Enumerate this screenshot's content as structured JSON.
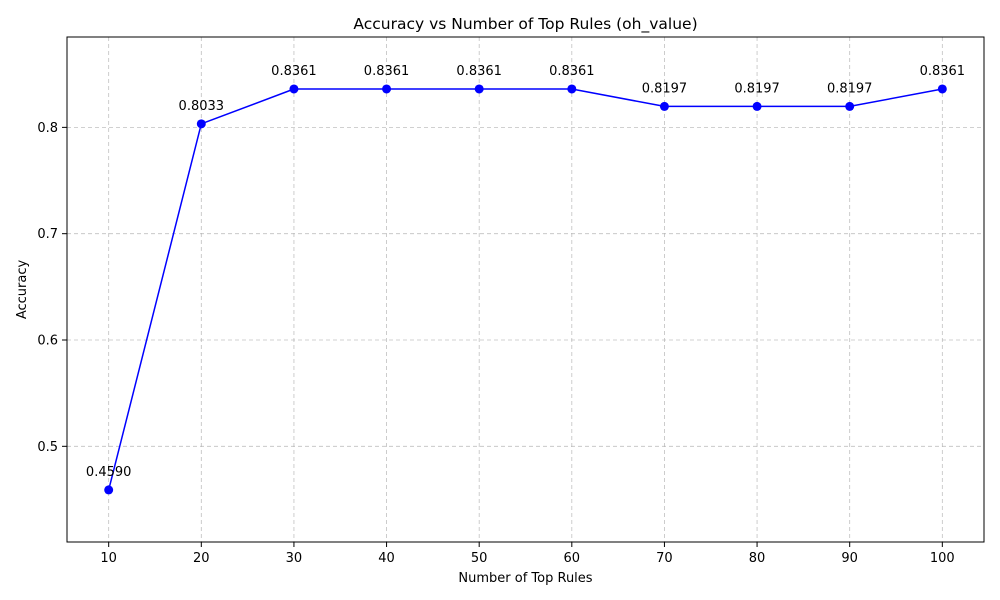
{
  "chart_data": {
    "type": "line",
    "title": "Accuracy vs Number of Top Rules (oh_value)",
    "xlabel": "Number of Top Rules",
    "ylabel": "Accuracy",
    "x": [
      10,
      20,
      30,
      40,
      50,
      60,
      70,
      80,
      90,
      100
    ],
    "series": [
      {
        "values": [
          0.459,
          0.8033,
          0.8361,
          0.8361,
          0.8361,
          0.8361,
          0.8197,
          0.8197,
          0.8197,
          0.8361
        ],
        "data_labels": [
          "0.4590",
          "0.8033",
          "0.8361",
          "0.8361",
          "0.8361",
          "0.8361",
          "0.8197",
          "0.8197",
          "0.8197",
          "0.8361"
        ],
        "color": "#0000ff",
        "marker": "circle"
      }
    ],
    "xticks": [
      10,
      20,
      30,
      40,
      50,
      60,
      70,
      80,
      90,
      100
    ],
    "yticks": [
      0.5,
      0.6,
      0.7,
      0.8
    ],
    "ytick_labels": [
      "0.5",
      "0.6",
      "0.7",
      "0.8"
    ],
    "xlim": [
      5.5,
      104.5
    ],
    "ylim": [
      0.41,
      0.885
    ],
    "grid": true,
    "grid_style": "dashed"
  }
}
